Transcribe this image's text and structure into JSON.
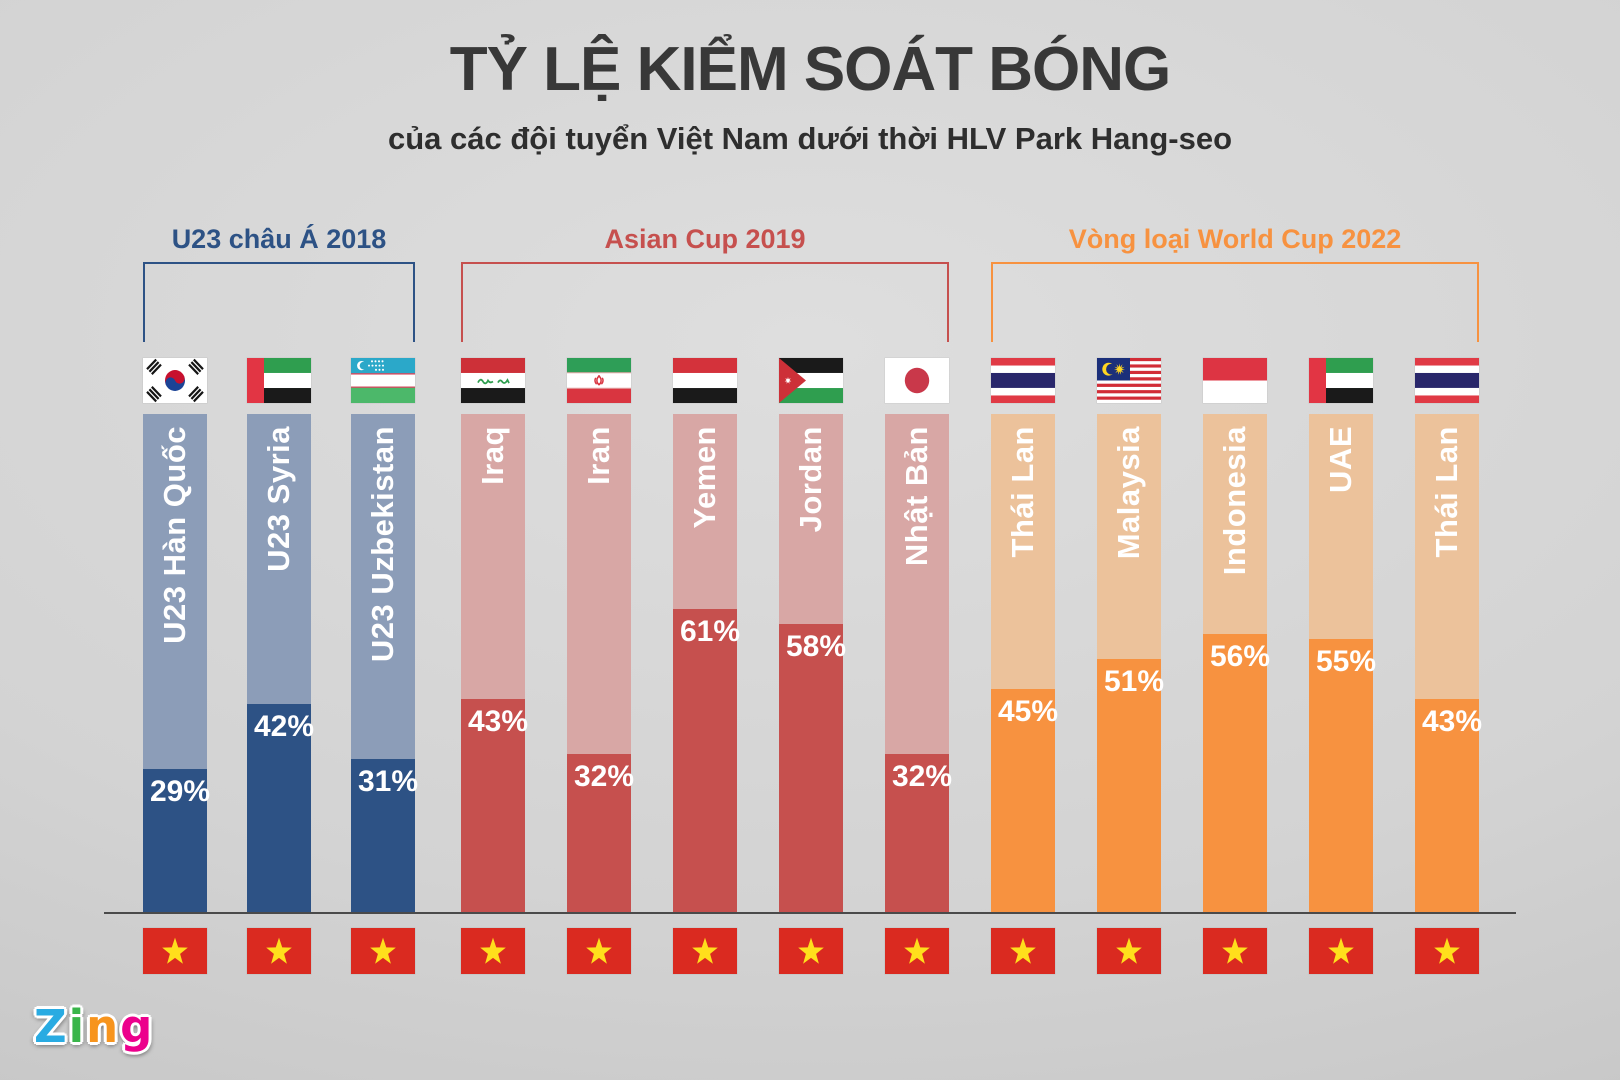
{
  "title": "TỶ LỆ KIỂM SOÁT BÓNG",
  "subtitle": "của các đội tuyển Việt Nam dưới thời HLV Park Hang-seo",
  "branding": {
    "name": "Zing",
    "letters": [
      {
        "ch": "Z",
        "color": "#29abe2"
      },
      {
        "ch": "i",
        "color": "#39b54a"
      },
      {
        "ch": "n",
        "color": "#f7941d"
      },
      {
        "ch": "g",
        "color": "#ec008c"
      }
    ]
  },
  "chart_data": {
    "type": "bar",
    "title": "TỶ LỆ KIỂM SOÁT BÓNG",
    "subtitle": "của các đội tuyển Việt Nam dưới thời HLV Park Hang-seo",
    "unit": "%",
    "ylim": [
      0,
      100
    ],
    "value_label_color": "#ffffff",
    "bottom_flag": "vietnam",
    "groups": [
      {
        "label": "U23 châu Á 2018",
        "color": "#2d5285",
        "light": "#8c9db8",
        "teams": [
          {
            "name": "U23 Hàn Quốc",
            "value": 29,
            "flag": "south-korea"
          },
          {
            "name": "U23 Syria",
            "value": 42,
            "flag": "uae"
          },
          {
            "name": "U23 Uzbekistan",
            "value": 31,
            "flag": "uzbekistan"
          }
        ]
      },
      {
        "label": "Asian Cup 2019",
        "color": "#c6504e",
        "light": "#d8a7a5",
        "teams": [
          {
            "name": "Iraq",
            "value": 43,
            "flag": "iraq"
          },
          {
            "name": "Iran",
            "value": 32,
            "flag": "iran"
          },
          {
            "name": "Yemen",
            "value": 61,
            "flag": "yemen"
          },
          {
            "name": "Jordan",
            "value": 58,
            "flag": "jordan"
          },
          {
            "name": "Nhật Bản",
            "value": 32,
            "flag": "japan"
          }
        ]
      },
      {
        "label": "Vòng loại World Cup 2022",
        "color": "#f79240",
        "light": "#ecc29b",
        "teams": [
          {
            "name": "Thái Lan",
            "value": 45,
            "flag": "thailand"
          },
          {
            "name": "Malaysia",
            "value": 51,
            "flag": "malaysia"
          },
          {
            "name": "Indonesia",
            "value": 56,
            "flag": "indonesia"
          },
          {
            "name": "UAE",
            "value": 55,
            "flag": "uae"
          },
          {
            "name": "Thái Lan",
            "value": 43,
            "flag": "thailand"
          }
        ]
      }
    ]
  }
}
